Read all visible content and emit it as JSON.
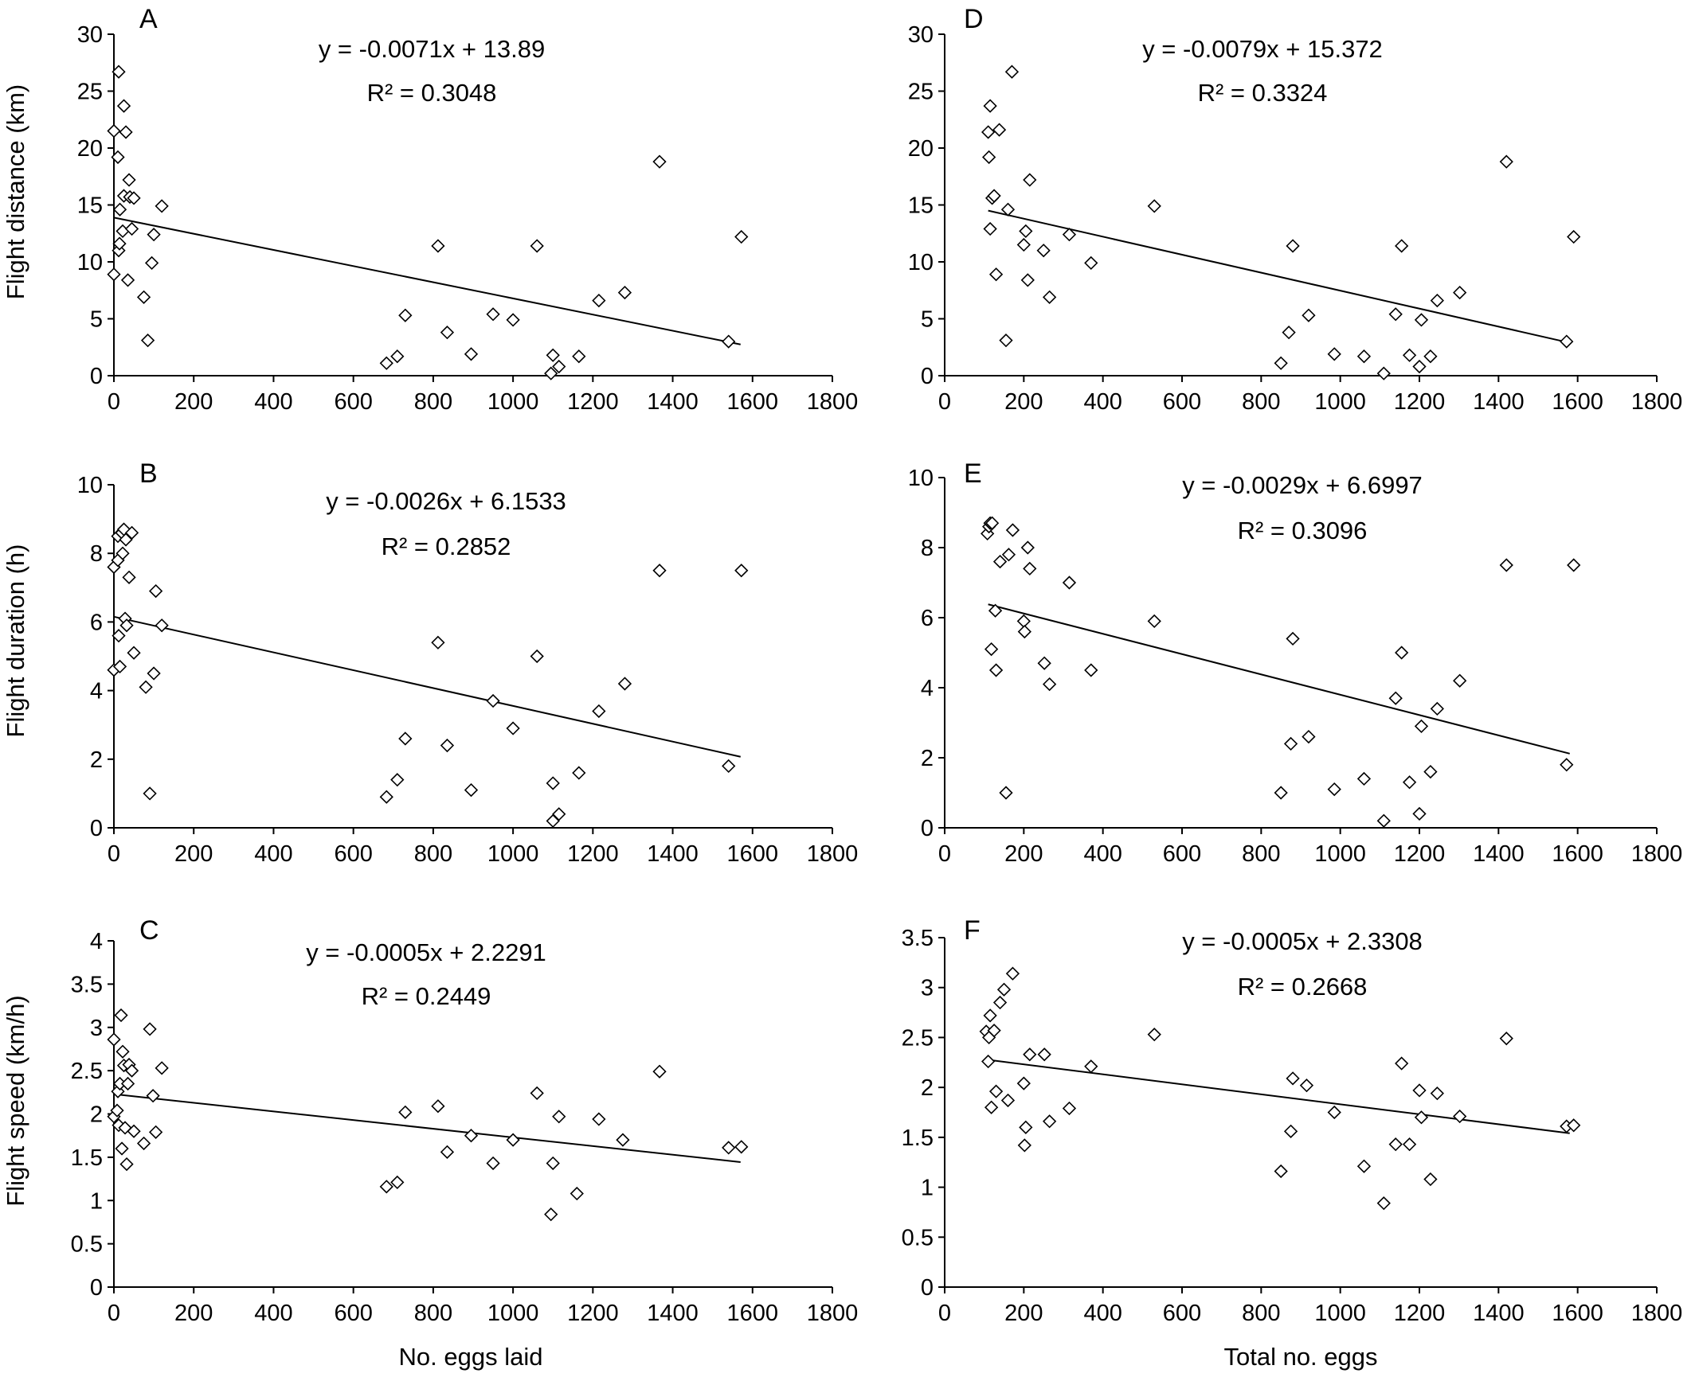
{
  "figure": {
    "y_axis_titles": {
      "row1": "Flight distance (km)",
      "row2": "Flight duration (h)",
      "row3": "Flight speed (km/h)"
    },
    "x_axis_titles": {
      "left": "No. eggs laid",
      "right": "Total no. eggs"
    }
  },
  "chart_data": [
    {
      "panel": "A",
      "type": "scatter",
      "equation": "y = -0.0071x + 13.89",
      "r2": "R² = 0.3048",
      "xlim": [
        0,
        1800
      ],
      "ylim": [
        0,
        30
      ],
      "xticks": [
        "0",
        "200",
        "400",
        "600",
        "800",
        "1000",
        "1200",
        "1400",
        "1600",
        "1800"
      ],
      "yticks": [
        "0",
        "5",
        "10",
        "15",
        "20",
        "25",
        "30"
      ],
      "trendline": {
        "slope": -0.0071,
        "intercept": 13.89,
        "x_range": [
          0,
          1570
        ]
      },
      "points": [
        [
          0,
          8.9
        ],
        [
          0,
          21.5
        ],
        [
          10,
          19.2
        ],
        [
          12,
          11.0
        ],
        [
          12,
          26.7
        ],
        [
          14,
          11.6
        ],
        [
          15,
          14.6
        ],
        [
          22,
          12.7
        ],
        [
          25,
          23.7
        ],
        [
          25,
          15.8
        ],
        [
          30,
          21.4
        ],
        [
          35,
          8.4
        ],
        [
          38,
          17.2
        ],
        [
          40,
          15.7
        ],
        [
          45,
          12.9
        ],
        [
          50,
          15.6
        ],
        [
          75,
          6.9
        ],
        [
          85,
          3.1
        ],
        [
          95,
          9.9
        ],
        [
          100,
          12.4
        ],
        [
          120,
          14.9
        ],
        [
          683,
          1.1
        ],
        [
          710,
          1.7
        ],
        [
          730,
          5.3
        ],
        [
          812,
          11.4
        ],
        [
          835,
          3.8
        ],
        [
          895,
          1.9
        ],
        [
          950,
          5.4
        ],
        [
          1000,
          4.9
        ],
        [
          1060,
          11.4
        ],
        [
          1095,
          0.2
        ],
        [
          1100,
          1.8
        ],
        [
          1115,
          0.8
        ],
        [
          1165,
          1.7
        ],
        [
          1215,
          6.6
        ],
        [
          1280,
          7.3
        ],
        [
          1367,
          18.8
        ],
        [
          1540,
          3.0
        ],
        [
          1572,
          12.2
        ]
      ]
    },
    {
      "panel": "D",
      "type": "scatter",
      "equation": "y = -0.0079x + 15.372",
      "r2": "R² = 0.3324",
      "xlim": [
        0,
        1800
      ],
      "ylim": [
        0,
        30
      ],
      "xticks": [
        "0",
        "200",
        "400",
        "600",
        "800",
        "1000",
        "1200",
        "1400",
        "1600",
        "1800"
      ],
      "yticks": [
        "0",
        "5",
        "10",
        "15",
        "20",
        "25",
        "30"
      ],
      "trendline": {
        "slope": -0.0079,
        "intercept": 15.372,
        "x_range": [
          110,
          1580
        ]
      },
      "points": [
        [
          110,
          21.4
        ],
        [
          112,
          19.2
        ],
        [
          115,
          23.7
        ],
        [
          115,
          12.9
        ],
        [
          120,
          15.6
        ],
        [
          125,
          15.8
        ],
        [
          130,
          8.9
        ],
        [
          138,
          21.6
        ],
        [
          155,
          3.1
        ],
        [
          160,
          14.6
        ],
        [
          170,
          26.7
        ],
        [
          200,
          11.5
        ],
        [
          205,
          12.7
        ],
        [
          210,
          8.4
        ],
        [
          215,
          17.2
        ],
        [
          250,
          11.0
        ],
        [
          265,
          6.9
        ],
        [
          315,
          12.4
        ],
        [
          370,
          9.9
        ],
        [
          530,
          14.9
        ],
        [
          850,
          1.1
        ],
        [
          870,
          3.8
        ],
        [
          880,
          11.4
        ],
        [
          920,
          5.3
        ],
        [
          985,
          1.9
        ],
        [
          1060,
          1.7
        ],
        [
          1110,
          0.2
        ],
        [
          1140,
          5.4
        ],
        [
          1155,
          11.4
        ],
        [
          1175,
          1.8
        ],
        [
          1200,
          0.8
        ],
        [
          1205,
          4.9
        ],
        [
          1228,
          1.7
        ],
        [
          1245,
          6.6
        ],
        [
          1302,
          7.3
        ],
        [
          1420,
          18.8
        ],
        [
          1572,
          3.0
        ],
        [
          1590,
          12.2
        ]
      ]
    },
    {
      "panel": "B",
      "type": "scatter",
      "equation": "y = -0.0026x + 6.1533",
      "r2": "R² = 0.2852",
      "xlim": [
        0,
        1800
      ],
      "ylim": [
        0,
        10
      ],
      "xticks": [
        "0",
        "200",
        "400",
        "600",
        "800",
        "1000",
        "1200",
        "1400",
        "1600",
        "1800"
      ],
      "yticks": [
        "0",
        "2",
        "4",
        "6",
        "8",
        "10"
      ],
      "trendline": {
        "slope": -0.0026,
        "intercept": 6.1533,
        "x_range": [
          0,
          1570
        ]
      },
      "points": [
        [
          0,
          7.6
        ],
        [
          0,
          4.6
        ],
        [
          10,
          7.8
        ],
        [
          10,
          8.5
        ],
        [
          12,
          5.6
        ],
        [
          15,
          4.7
        ],
        [
          20,
          8.6
        ],
        [
          22,
          8.0
        ],
        [
          25,
          8.7
        ],
        [
          28,
          6.1
        ],
        [
          30,
          8.4
        ],
        [
          32,
          5.9
        ],
        [
          38,
          7.3
        ],
        [
          45,
          8.6
        ],
        [
          50,
          5.1
        ],
        [
          80,
          4.1
        ],
        [
          90,
          1.0
        ],
        [
          100,
          4.5
        ],
        [
          105,
          6.9
        ],
        [
          120,
          5.9
        ],
        [
          683,
          0.9
        ],
        [
          710,
          1.4
        ],
        [
          730,
          2.6
        ],
        [
          812,
          5.4
        ],
        [
          835,
          2.4
        ],
        [
          895,
          1.1
        ],
        [
          950,
          3.7
        ],
        [
          1000,
          2.9
        ],
        [
          1060,
          5.0
        ],
        [
          1100,
          0.2
        ],
        [
          1100,
          1.3
        ],
        [
          1115,
          0.4
        ],
        [
          1165,
          1.6
        ],
        [
          1215,
          3.4
        ],
        [
          1280,
          4.2
        ],
        [
          1367,
          7.5
        ],
        [
          1540,
          1.8
        ],
        [
          1572,
          7.5
        ]
      ]
    },
    {
      "panel": "E",
      "type": "scatter",
      "equation": "y = -0.0029x + 6.6997",
      "r2": "R² = 0.3096",
      "xlim": [
        0,
        1800
      ],
      "ylim": [
        0,
        10
      ],
      "xticks": [
        "0",
        "200",
        "400",
        "600",
        "800",
        "1000",
        "1200",
        "1400",
        "1600",
        "1800"
      ],
      "yticks": [
        "0",
        "2",
        "4",
        "6",
        "8",
        "10"
      ],
      "trendline": {
        "slope": -0.0029,
        "intercept": 6.6997,
        "x_range": [
          110,
          1580
        ]
      },
      "points": [
        [
          108,
          8.4
        ],
        [
          112,
          8.6
        ],
        [
          115,
          8.7
        ],
        [
          118,
          5.1
        ],
        [
          120,
          8.7
        ],
        [
          128,
          6.2
        ],
        [
          130,
          4.5
        ],
        [
          140,
          7.6
        ],
        [
          155,
          1.0
        ],
        [
          162,
          7.8
        ],
        [
          172,
          8.5
        ],
        [
          200,
          5.9
        ],
        [
          202,
          5.6
        ],
        [
          210,
          8.0
        ],
        [
          215,
          7.4
        ],
        [
          252,
          4.7
        ],
        [
          265,
          4.1
        ],
        [
          315,
          7.0
        ],
        [
          370,
          4.5
        ],
        [
          530,
          5.9
        ],
        [
          850,
          1.0
        ],
        [
          875,
          2.4
        ],
        [
          880,
          5.4
        ],
        [
          920,
          2.6
        ],
        [
          985,
          1.1
        ],
        [
          1060,
          1.4
        ],
        [
          1110,
          0.2
        ],
        [
          1140,
          3.7
        ],
        [
          1155,
          5.0
        ],
        [
          1175,
          1.3
        ],
        [
          1200,
          0.4
        ],
        [
          1205,
          2.9
        ],
        [
          1228,
          1.6
        ],
        [
          1245,
          3.4
        ],
        [
          1302,
          4.2
        ],
        [
          1420,
          7.5
        ],
        [
          1572,
          1.8
        ],
        [
          1590,
          7.5
        ]
      ]
    },
    {
      "panel": "C",
      "type": "scatter",
      "equation": "y = -0.0005x + 2.2291",
      "r2": "R² = 0.2449",
      "xlim": [
        0,
        1800
      ],
      "ylim": [
        0,
        4
      ],
      "xticks": [
        "0",
        "200",
        "400",
        "600",
        "800",
        "1000",
        "1200",
        "1400",
        "1600",
        "1800"
      ],
      "yticks": [
        "0",
        "0.5",
        "1",
        "1.5",
        "2",
        "2.5",
        "3",
        "3.5",
        "4"
      ],
      "trendline": {
        "slope": -0.0005,
        "intercept": 2.2291,
        "x_range": [
          0,
          1570
        ]
      },
      "points": [
        [
          0,
          2.86
        ],
        [
          0,
          1.97
        ],
        [
          8,
          2.04
        ],
        [
          10,
          2.26
        ],
        [
          12,
          1.87
        ],
        [
          15,
          2.35
        ],
        [
          18,
          3.14
        ],
        [
          20,
          1.6
        ],
        [
          22,
          2.72
        ],
        [
          25,
          2.56
        ],
        [
          28,
          1.84
        ],
        [
          32,
          1.42
        ],
        [
          35,
          2.35
        ],
        [
          38,
          2.57
        ],
        [
          45,
          2.5
        ],
        [
          50,
          1.8
        ],
        [
          75,
          1.66
        ],
        [
          90,
          2.98
        ],
        [
          98,
          2.21
        ],
        [
          105,
          1.79
        ],
        [
          120,
          2.53
        ],
        [
          683,
          1.16
        ],
        [
          710,
          1.21
        ],
        [
          730,
          2.02
        ],
        [
          812,
          2.09
        ],
        [
          835,
          1.56
        ],
        [
          895,
          1.75
        ],
        [
          950,
          1.43
        ],
        [
          1000,
          1.7
        ],
        [
          1060,
          2.24
        ],
        [
          1095,
          0.84
        ],
        [
          1100,
          1.43
        ],
        [
          1115,
          1.97
        ],
        [
          1160,
          1.08
        ],
        [
          1215,
          1.94
        ],
        [
          1275,
          1.7
        ],
        [
          1367,
          2.49
        ],
        [
          1540,
          1.61
        ],
        [
          1572,
          1.62
        ]
      ]
    },
    {
      "panel": "F",
      "type": "scatter",
      "equation": "y = -0.0005x + 2.3308",
      "r2": "R² = 0.2668",
      "xlim": [
        0,
        1800
      ],
      "ylim": [
        0,
        3.5
      ],
      "xticks": [
        "0",
        "200",
        "400",
        "600",
        "800",
        "1000",
        "1200",
        "1400",
        "1600",
        "1800"
      ],
      "yticks": [
        "0",
        "0.5",
        "1",
        "1.5",
        "2",
        "2.5",
        "3",
        "3.5"
      ],
      "trendline": {
        "slope": -0.0005,
        "intercept": 2.3308,
        "x_range": [
          110,
          1580
        ]
      },
      "points": [
        [
          105,
          2.56
        ],
        [
          110,
          2.26
        ],
        [
          112,
          2.5
        ],
        [
          115,
          2.72
        ],
        [
          118,
          1.8
        ],
        [
          125,
          2.57
        ],
        [
          130,
          1.96
        ],
        [
          140,
          2.85
        ],
        [
          150,
          2.98
        ],
        [
          160,
          1.87
        ],
        [
          172,
          3.14
        ],
        [
          200,
          2.04
        ],
        [
          202,
          1.42
        ],
        [
          205,
          1.6
        ],
        [
          215,
          2.33
        ],
        [
          252,
          2.33
        ],
        [
          265,
          1.66
        ],
        [
          315,
          1.79
        ],
        [
          370,
          2.21
        ],
        [
          530,
          2.53
        ],
        [
          850,
          1.16
        ],
        [
          875,
          1.56
        ],
        [
          880,
          2.09
        ],
        [
          915,
          2.02
        ],
        [
          985,
          1.75
        ],
        [
          1060,
          1.21
        ],
        [
          1110,
          0.84
        ],
        [
          1140,
          1.43
        ],
        [
          1155,
          2.24
        ],
        [
          1175,
          1.43
        ],
        [
          1200,
          1.97
        ],
        [
          1205,
          1.7
        ],
        [
          1228,
          1.08
        ],
        [
          1245,
          1.94
        ],
        [
          1302,
          1.71
        ],
        [
          1420,
          2.49
        ],
        [
          1572,
          1.61
        ],
        [
          1590,
          1.62
        ]
      ]
    }
  ]
}
